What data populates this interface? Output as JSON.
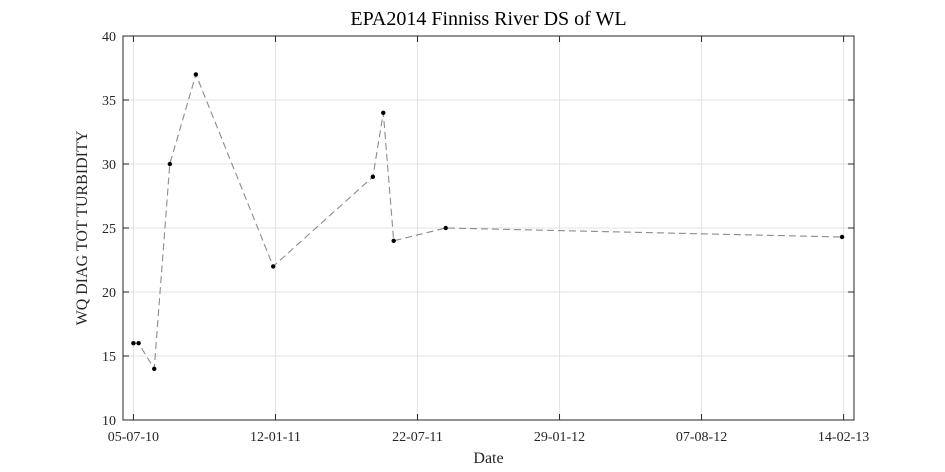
{
  "chart_data": {
    "type": "line",
    "title": "EPA2014 Finniss River DS of WL",
    "xlabel": "Date",
    "ylabel": "WQ DIAG TOT TURBIDITY",
    "x_ticks": [
      "05-07-10",
      "12-01-11",
      "22-07-11",
      "29-01-12",
      "07-08-12",
      "14-02-13"
    ],
    "x_tick_dates": [
      "2010-07-05",
      "2011-01-12",
      "2011-07-22",
      "2012-01-29",
      "2012-08-07",
      "2013-02-14"
    ],
    "xlim": [
      "2010-06-21",
      "2013-02-28"
    ],
    "ylim": [
      10,
      40
    ],
    "y_ticks": [
      10,
      15,
      20,
      25,
      30,
      35,
      40
    ],
    "grid": true,
    "series": [
      {
        "line_style": "dashed",
        "marker": "dot",
        "color": "#8c8c8c",
        "marker_color": "#000000",
        "x": [
          "2010-07-05",
          "2010-07-12",
          "2010-08-02",
          "2010-08-23",
          "2010-09-27",
          "2011-01-09",
          "2011-05-23",
          "2011-06-06",
          "2011-06-20",
          "2011-08-29",
          "2013-02-12"
        ],
        "y": [
          16,
          16,
          14,
          30,
          37,
          22,
          29,
          34,
          24,
          25,
          24.3
        ]
      }
    ]
  }
}
